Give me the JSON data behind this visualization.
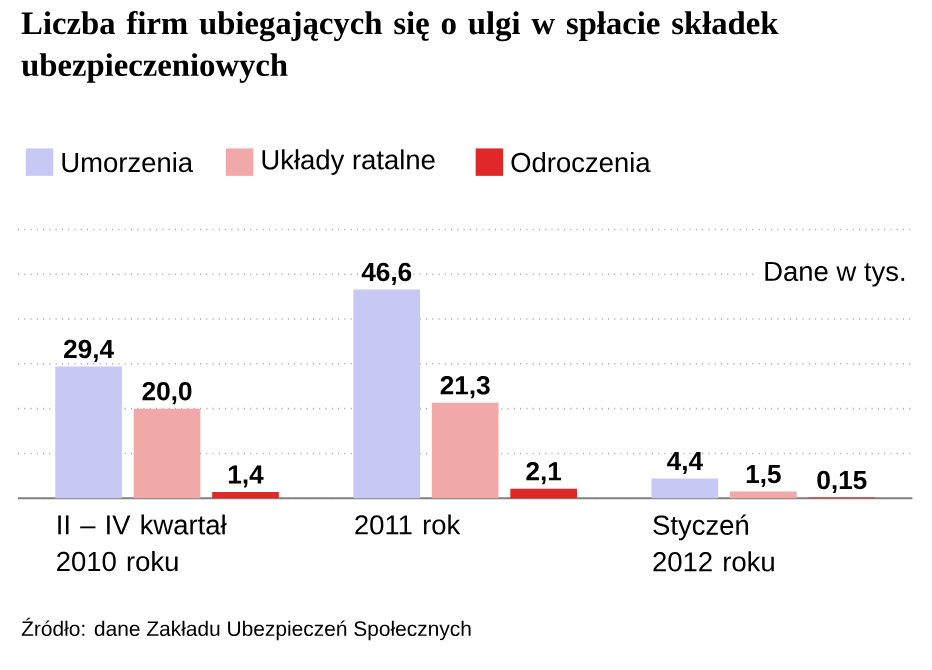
{
  "chart_data": {
    "type": "bar",
    "title": "Liczba firm ubiegających się o ulgi w spłacie składek ubezpieczeniowych",
    "categories": [
      "II – IV kwartał 2010 roku",
      "2011 rok",
      "Styczeń 2012 roku"
    ],
    "series": [
      {
        "name": "Umorzenia",
        "color": "#c8c8f5",
        "values": [
          29.4,
          46.6,
          4.4
        ],
        "value_labels": [
          "29,4",
          "46,6",
          "4,4"
        ]
      },
      {
        "name": "Układy ratalne",
        "color": "#f0a8a8",
        "values": [
          20.0,
          21.3,
          1.5
        ],
        "value_labels": [
          "20,0",
          "21,3",
          "1,5"
        ]
      },
      {
        "name": "Odroczenia",
        "color": "#e02828",
        "values": [
          1.4,
          2.1,
          0.15
        ],
        "value_labels": [
          "1,4",
          "2,1",
          "0,15"
        ]
      }
    ],
    "ylim": [
      0,
      60
    ],
    "yticks": [
      {
        "value": 0,
        "label": null
      },
      {
        "value": 10,
        "label": null
      },
      {
        "value": 20,
        "label": null
      },
      {
        "value": 30,
        "label": null
      },
      {
        "value": 40,
        "label": null
      },
      {
        "value": 50,
        "label": null
      },
      {
        "value": 60,
        "label": null
      }
    ],
    "tick_labels": "x",
    "grid": "y",
    "legend": "top left",
    "annotations": [
      "Dane w tys.",
      "Źródło: dane Zakładu Ubezpieczeń Społecznych"
    ]
  }
}
